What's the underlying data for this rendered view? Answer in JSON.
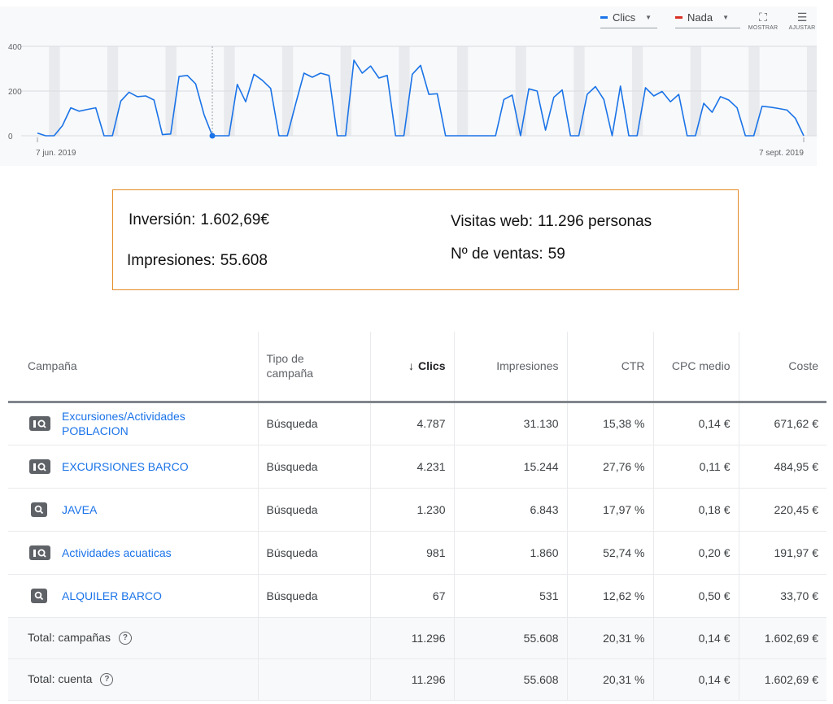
{
  "chart": {
    "controls": {
      "metric1": {
        "label": "Clics",
        "color": "#1a73e8"
      },
      "metric2": {
        "label": "Nada",
        "color": "#d93025"
      },
      "show_label": "MOSTRAR",
      "adjust_label": "AJUSTAR"
    }
  },
  "chart_data": {
    "type": "line",
    "x_start_label": "7 jun. 2019",
    "x_end_label": "7 sept. 2019",
    "y_ticks": [
      0,
      200,
      400
    ],
    "ylim": [
      0,
      400
    ],
    "grid": true,
    "series": [
      {
        "name": "Clics",
        "color": "#1a73e8",
        "values": [
          12,
          0,
          0,
          45,
          125,
          110,
          118,
          125,
          0,
          0,
          155,
          195,
          175,
          178,
          160,
          5,
          8,
          265,
          270,
          232,
          95,
          0,
          0,
          0,
          230,
          152,
          275,
          248,
          212,
          0,
          0,
          142,
          280,
          262,
          280,
          270,
          0,
          0,
          338,
          280,
          312,
          258,
          270,
          0,
          0,
          275,
          315,
          185,
          188,
          0,
          0,
          0,
          0,
          0,
          0,
          0,
          162,
          182,
          0,
          210,
          200,
          25,
          172,
          205,
          0,
          0,
          185,
          220,
          162,
          0,
          222,
          0,
          0,
          215,
          178,
          198,
          152,
          185,
          0,
          0,
          145,
          105,
          175,
          160,
          125,
          0,
          0,
          132,
          128,
          122,
          115,
          78,
          0
        ]
      }
    ]
  },
  "summary": {
    "inversion_label": "Inversión:",
    "inversion_value": "1.602,69€",
    "impresiones_label": "Impresiones:",
    "impresiones_value": "55.608",
    "visitas_label": "Visitas web:",
    "visitas_value": "11.296 personas",
    "ventas_label": "Nº de ventas:",
    "ventas_value": "59"
  },
  "table": {
    "headers": {
      "campaign": "Campaña",
      "type_line1": "Tipo de",
      "type_line2": "campaña",
      "sort_arrow": "↓",
      "clicks": "Clics",
      "impressions": "Impresiones",
      "ctr": "CTR",
      "cpc": "CPC medio",
      "cost": "Coste"
    },
    "rows": [
      {
        "name_line1": "Excursiones/Actividades",
        "name_line2": "POBLACION",
        "icon": "search-display-icon",
        "type": "Búsqueda",
        "clicks": "4.787",
        "impressions": "31.130",
        "ctr": "15,38 %",
        "cpc": "0,14 €",
        "cost": "671,62 €"
      },
      {
        "name_line1": "EXCURSIONES BARCO",
        "name_line2": "",
        "icon": "search-display-icon",
        "type": "Búsqueda",
        "clicks": "4.231",
        "impressions": "15.244",
        "ctr": "27,76 %",
        "cpc": "0,11 €",
        "cost": "484,95 €"
      },
      {
        "name_line1": "JAVEA",
        "name_line2": "",
        "icon": "search-icon",
        "type": "Búsqueda",
        "clicks": "1.230",
        "impressions": "6.843",
        "ctr": "17,97 %",
        "cpc": "0,18 €",
        "cost": "220,45 €"
      },
      {
        "name_line1": "Actividades acuaticas",
        "name_line2": "",
        "icon": "search-display-icon",
        "type": "Búsqueda",
        "clicks": "981",
        "impressions": "1.860",
        "ctr": "52,74 %",
        "cpc": "0,20 €",
        "cost": "191,97 €"
      },
      {
        "name_line1": "ALQUILER BARCO",
        "name_line2": "",
        "icon": "search-icon",
        "type": "Búsqueda",
        "clicks": "67",
        "impressions": "531",
        "ctr": "12,62 %",
        "cpc": "0,50 €",
        "cost": "33,70 €"
      }
    ],
    "totals": [
      {
        "label": "Total: campañas",
        "clicks": "11.296",
        "impressions": "55.608",
        "ctr": "20,31 %",
        "cpc": "0,14 €",
        "cost": "1.602,69 €"
      },
      {
        "label": "Total: cuenta",
        "clicks": "11.296",
        "impressions": "55.608",
        "ctr": "20,31 %",
        "cpc": "0,14 €",
        "cost": "1.602,69 €"
      }
    ]
  }
}
